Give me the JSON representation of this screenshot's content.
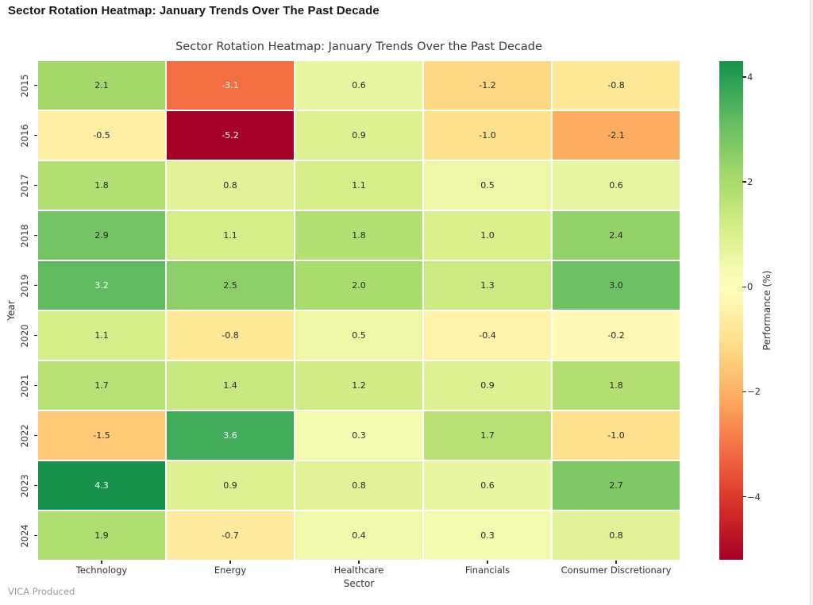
{
  "page": {
    "title": "Sector Rotation Heatmap: January Trends Over The Past Decade",
    "footer": "VICA Produced"
  },
  "chart_data": {
    "type": "heatmap",
    "title": "Sector Rotation Heatmap: January Trends Over the Past Decade",
    "xlabel": "Sector",
    "ylabel": "Year",
    "colorbar_label": "Performance (%)",
    "colormap": "RdYlGn",
    "center": 0,
    "norm_vmin": -5.2,
    "norm_vmax": 5.2,
    "colorbar_range": [
      -5.2,
      4.3
    ],
    "colorbar_tick_values": [
      4,
      2,
      0,
      -2,
      -4
    ],
    "colorbar_tick_labels": [
      "4",
      "2",
      "0",
      "−2",
      "−4"
    ],
    "categories": [
      "Technology",
      "Energy",
      "Healthcare",
      "Financials",
      "Consumer Discretionary"
    ],
    "rows": [
      "2015",
      "2016",
      "2017",
      "2018",
      "2019",
      "2020",
      "2021",
      "2022",
      "2023",
      "2024"
    ],
    "values": [
      [
        2.1,
        -3.1,
        0.6,
        -1.2,
        -0.8
      ],
      [
        -0.5,
        -5.2,
        0.9,
        -1.0,
        -2.1
      ],
      [
        1.8,
        0.8,
        1.1,
        0.5,
        0.6
      ],
      [
        2.9,
        1.1,
        1.8,
        1.0,
        2.4
      ],
      [
        3.2,
        2.5,
        2.0,
        1.3,
        3.0
      ],
      [
        1.1,
        -0.8,
        0.5,
        -0.4,
        -0.2
      ],
      [
        1.7,
        1.4,
        1.2,
        0.9,
        1.8
      ],
      [
        -1.5,
        3.6,
        0.3,
        1.7,
        -1.0
      ],
      [
        4.3,
        0.9,
        0.8,
        0.6,
        2.7
      ],
      [
        1.9,
        -0.7,
        0.4,
        0.3,
        0.8
      ]
    ],
    "annot_format": ".1f",
    "grid_on": false,
    "colors": {
      "annot_dark": "#262626",
      "annot_light": "#ffffff",
      "tick_text": "#303030",
      "title_text": "#3a3a3a",
      "page_title_text": "#15171c",
      "footer_text": "#9b9b9b",
      "cell_divider": "#ffffff"
    }
  }
}
